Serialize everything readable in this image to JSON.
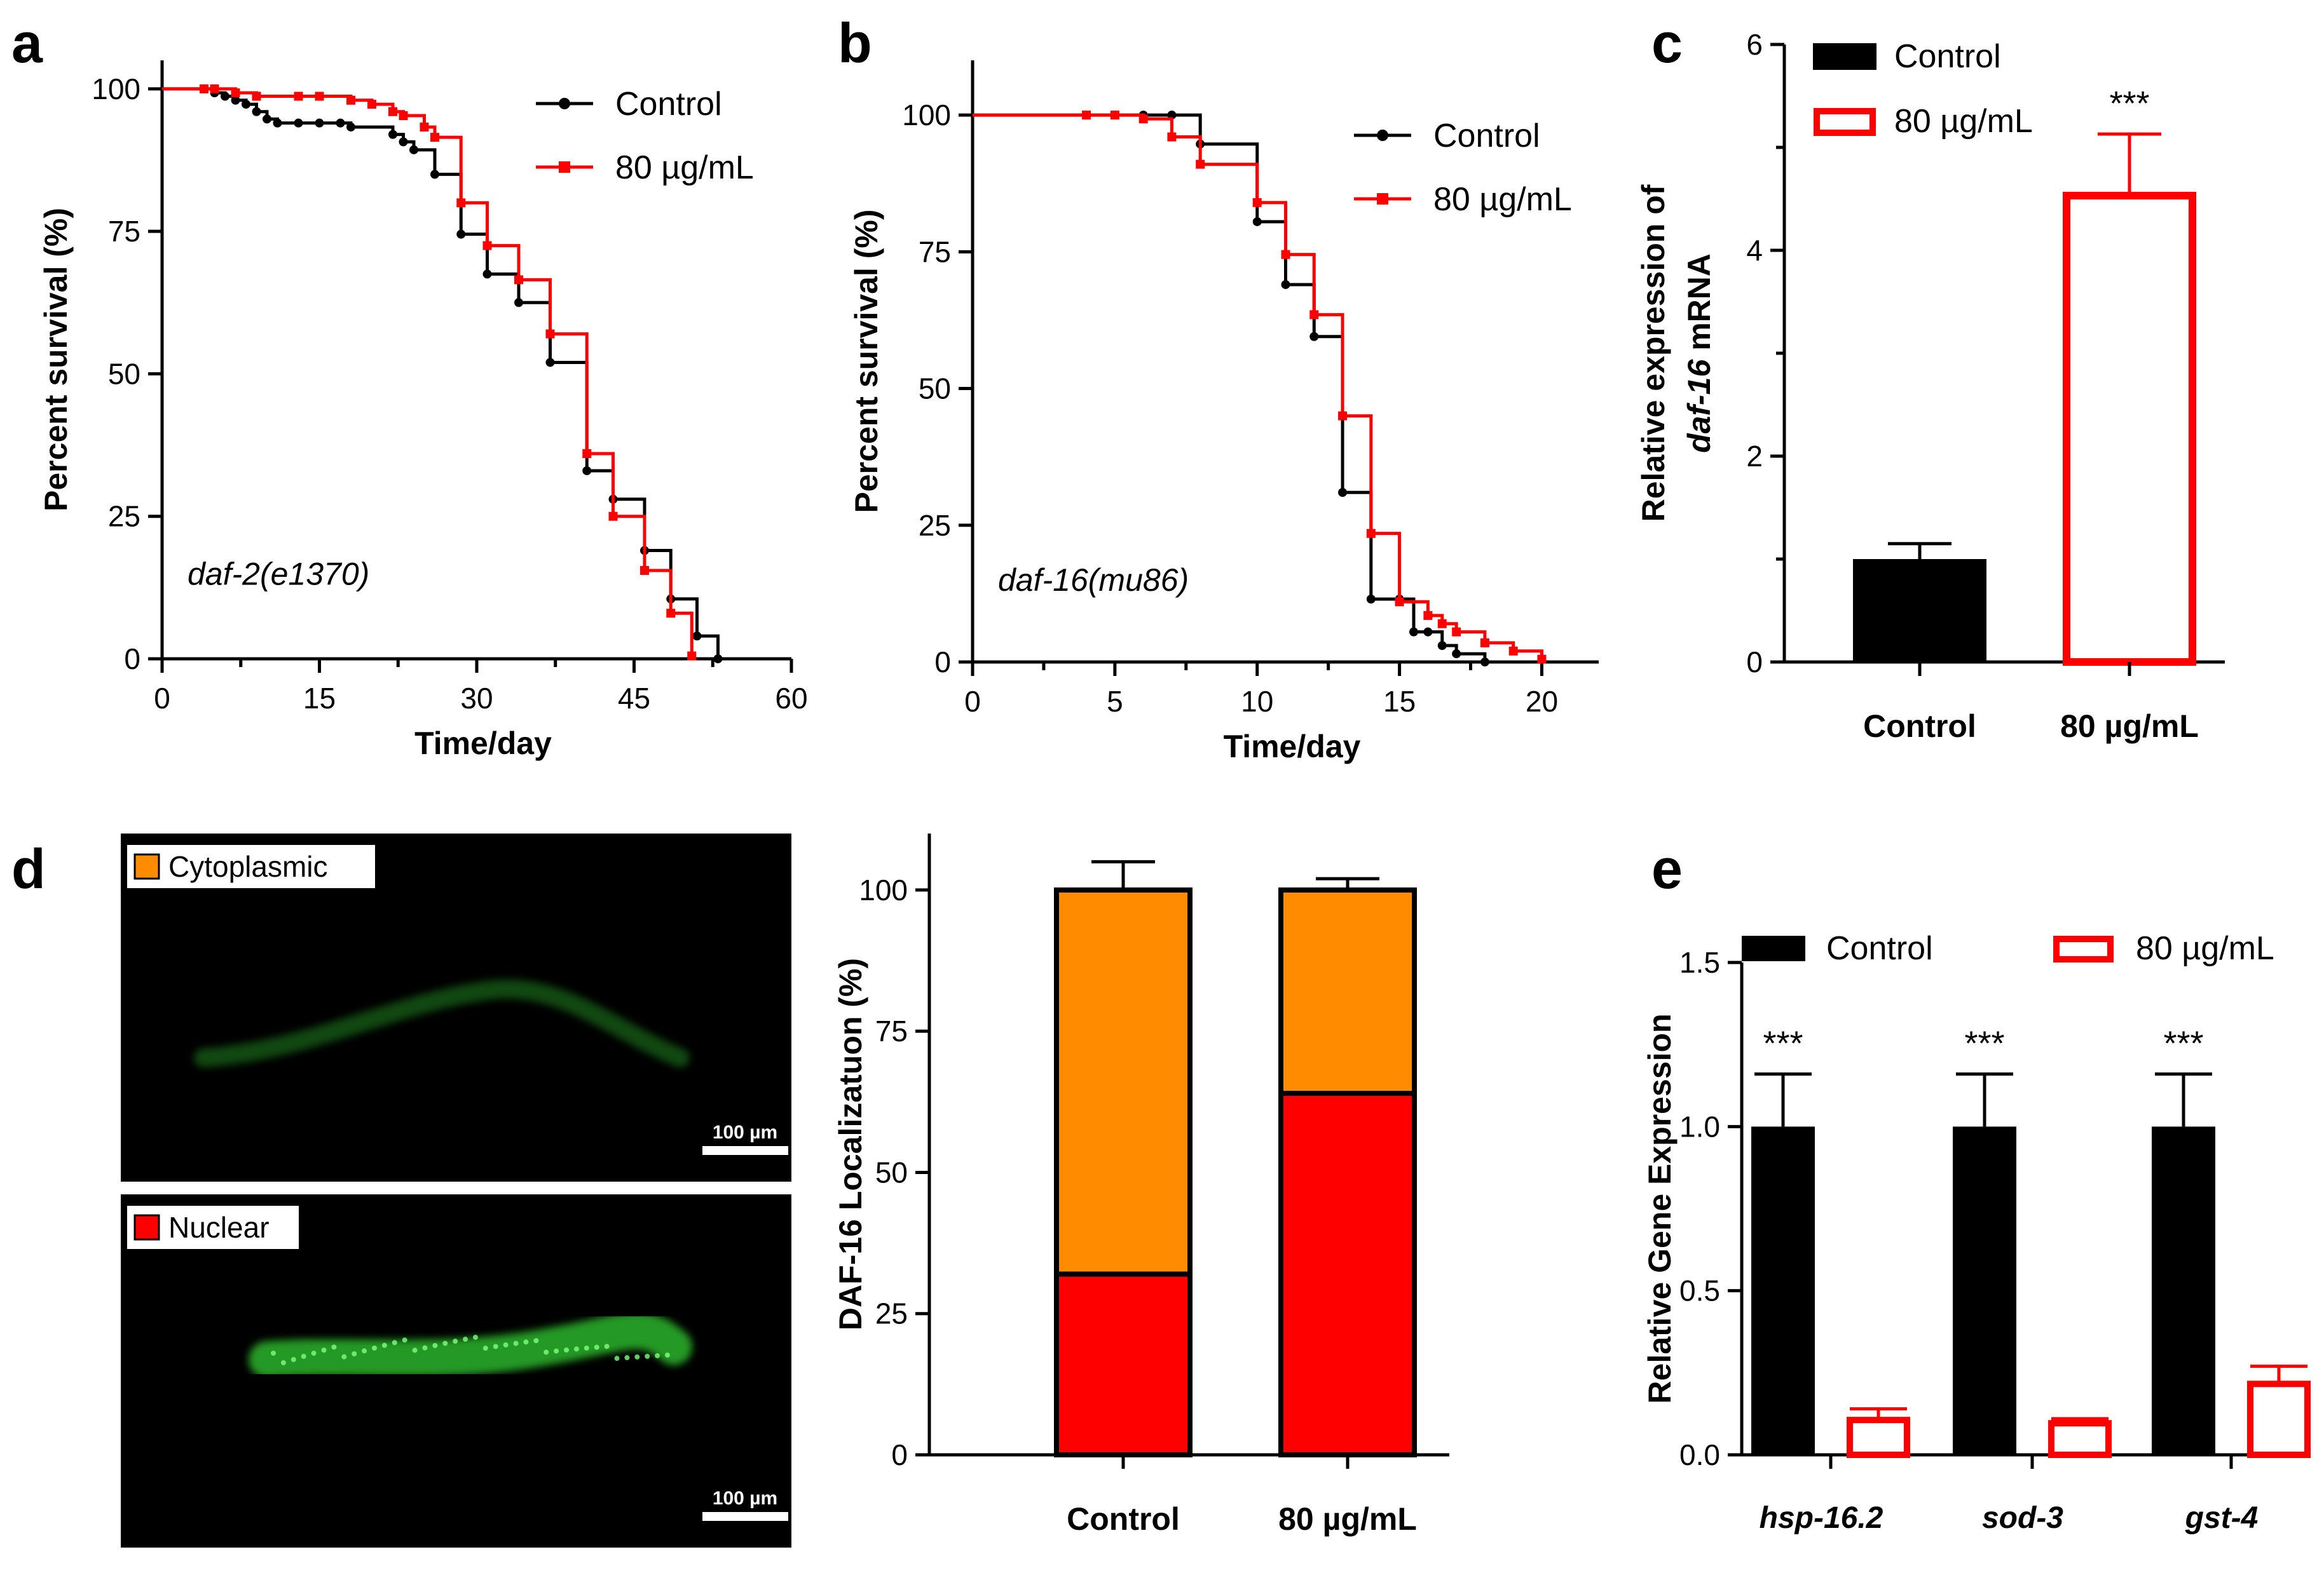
{
  "panels": {
    "a": "a",
    "b": "b",
    "c": "c",
    "d": "d",
    "e": "e"
  },
  "colors": {
    "control": "#000000",
    "treated": "#ff0000",
    "cytoplasmic": "#ff8c00",
    "nuclear": "#ff0000",
    "gfp": "#33cc33"
  },
  "chart_data": [
    {
      "id": "a",
      "type": "line",
      "step": true,
      "xlabel": "Time/day",
      "ylabel": "Percent  survival (%)",
      "annotation": "daf-2(e1370)",
      "xlim": [
        0,
        60
      ],
      "ylim": [
        0,
        105
      ],
      "xticks": [
        0,
        15,
        30,
        45,
        60
      ],
      "yticks": [
        0,
        25,
        50,
        75,
        100
      ],
      "series": [
        {
          "name": "Control",
          "points": [
            [
              0,
              100
            ],
            [
              4,
              100
            ],
            [
              5,
              99.3
            ],
            [
              6,
              98.7
            ],
            [
              7,
              98
            ],
            [
              8,
              97.3
            ],
            [
              9,
              96
            ],
            [
              10,
              94.7
            ],
            [
              11,
              94
            ],
            [
              13,
              94
            ],
            [
              15,
              94
            ],
            [
              17,
              94
            ],
            [
              18,
              93.3
            ],
            [
              22,
              92
            ],
            [
              23,
              90.7
            ],
            [
              24,
              89.3
            ],
            [
              26,
              85
            ],
            [
              28.5,
              74.5
            ],
            [
              31,
              67.5
            ],
            [
              34,
              62.5
            ],
            [
              37,
              52
            ],
            [
              40.5,
              33
            ],
            [
              43,
              28
            ],
            [
              46,
              19
            ],
            [
              48.5,
              10.5
            ],
            [
              51,
              4
            ],
            [
              53,
              0
            ]
          ]
        },
        {
          "name": "80 µg/mL",
          "points": [
            [
              0,
              100
            ],
            [
              4,
              100
            ],
            [
              5,
              100
            ],
            [
              7,
              99.3
            ],
            [
              9,
              98.7
            ],
            [
              13,
              98.7
            ],
            [
              15,
              98.7
            ],
            [
              18,
              98
            ],
            [
              20,
              97.3
            ],
            [
              22,
              96
            ],
            [
              23,
              95.3
            ],
            [
              25,
              93.3
            ],
            [
              26,
              91.5
            ],
            [
              28.5,
              80
            ],
            [
              31,
              72.5
            ],
            [
              34,
              66.5
            ],
            [
              37,
              57
            ],
            [
              40.5,
              36
            ],
            [
              43,
              25
            ],
            [
              46,
              15.5
            ],
            [
              48.5,
              8
            ],
            [
              50.5,
              0.5
            ]
          ]
        }
      ]
    },
    {
      "id": "b",
      "type": "line",
      "step": true,
      "xlabel": "Time/day",
      "ylabel": "Percent  survival (%)",
      "annotation": "daf-16(mu86)",
      "xlim": [
        0,
        22
      ],
      "ylim": [
        0,
        110
      ],
      "xticks": [
        0,
        5,
        10,
        15,
        20
      ],
      "yticks": [
        0,
        25,
        50,
        75,
        100
      ],
      "series": [
        {
          "name": "Control",
          "points": [
            [
              0,
              100
            ],
            [
              4,
              100
            ],
            [
              5,
              100
            ],
            [
              6,
              100
            ],
            [
              7,
              100
            ],
            [
              8,
              94.7
            ],
            [
              10,
              80.5
            ],
            [
              11,
              69
            ],
            [
              12,
              59.5
            ],
            [
              13,
              31
            ],
            [
              14,
              11.5
            ],
            [
              15,
              11.5
            ],
            [
              15.5,
              5.5
            ],
            [
              16,
              5.5
            ],
            [
              16.5,
              3
            ],
            [
              17,
              1.5
            ],
            [
              18,
              0
            ]
          ]
        },
        {
          "name": "80 µg/mL",
          "points": [
            [
              0,
              100
            ],
            [
              4,
              100
            ],
            [
              5,
              100
            ],
            [
              6,
              99.3
            ],
            [
              7,
              96
            ],
            [
              8,
              91
            ],
            [
              10,
              84
            ],
            [
              11,
              74.5
            ],
            [
              12,
              63.5
            ],
            [
              13,
              45
            ],
            [
              14,
              23.5
            ],
            [
              15,
              11
            ],
            [
              16,
              8.5
            ],
            [
              16.5,
              7
            ],
            [
              17,
              5.5
            ],
            [
              18,
              3.5
            ],
            [
              19,
              2
            ],
            [
              20,
              0.5
            ]
          ]
        }
      ]
    },
    {
      "id": "c",
      "type": "bar",
      "ylabel": "Relative expression of",
      "ylabel_gene": "daf-16",
      "ylabel_tail": " mRNA",
      "categories": [
        "Control",
        "80 µg/mL"
      ],
      "values": [
        1.0,
        4.55
      ],
      "errors": [
        0.15,
        0.58
      ],
      "ylim": [
        0,
        6
      ],
      "yticks": [
        0,
        2,
        4,
        6
      ],
      "significance": [
        "",
        "***"
      ],
      "legend": [
        "Control",
        "80 µg/mL"
      ]
    },
    {
      "id": "d",
      "type": "bar",
      "stacked": true,
      "ylabel": "DAF-16 Localizatuon (%)",
      "categories": [
        "Control",
        "80 µg/mL"
      ],
      "series": [
        {
          "name": "Nuclear",
          "values": [
            32,
            64
          ]
        },
        {
          "name": "Cytoplasmic",
          "values": [
            68,
            36
          ]
        }
      ],
      "errors": [
        5,
        2
      ],
      "ylim": [
        0,
        110
      ],
      "yticks": [
        0,
        25,
        50,
        75,
        100
      ]
    },
    {
      "id": "e",
      "type": "bar",
      "ylabel": "Relative Gene Expression",
      "categories": [
        "hsp-16.2",
        "sod-3",
        "gst-4"
      ],
      "series": [
        {
          "name": "Control",
          "values": [
            1.0,
            1.0,
            1.0
          ],
          "errors": [
            0.16,
            0.16,
            0.16
          ]
        },
        {
          "name": "80 µg/mL",
          "values": [
            0.11,
            0.1,
            0.22
          ],
          "errors": [
            0.03,
            0.01,
            0.05
          ]
        }
      ],
      "ylim": [
        0,
        1.5
      ],
      "yticks": [
        0.0,
        0.5,
        1.0,
        1.5
      ],
      "significance": [
        "***",
        "***",
        "***"
      ]
    }
  ],
  "micrographs": [
    {
      "tag": "Cytoplasmic",
      "scale": "100 µm"
    },
    {
      "tag": "Nuclear",
      "scale": "100 µm"
    }
  ]
}
